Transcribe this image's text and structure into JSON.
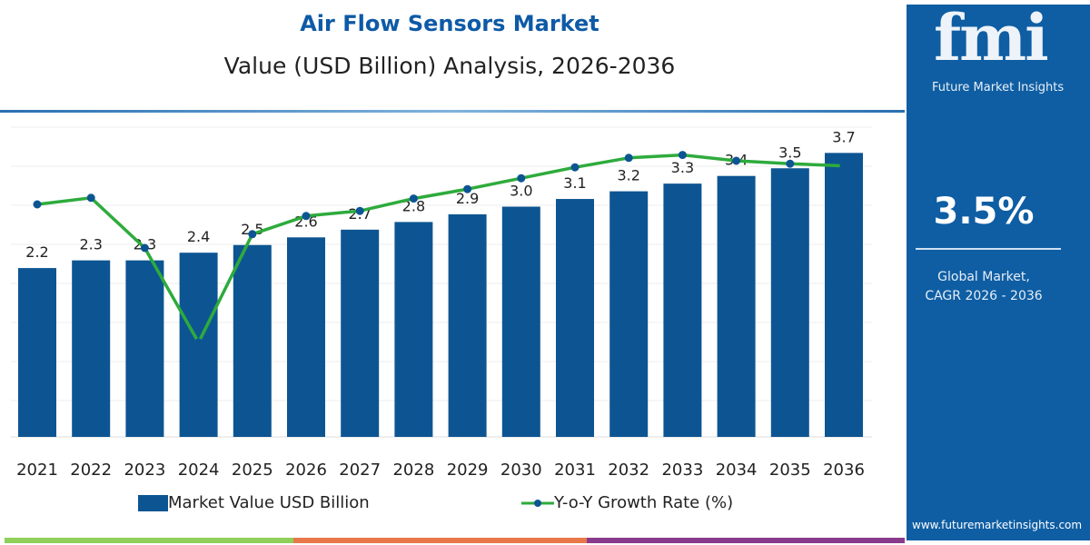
{
  "header": {
    "title": "Air Flow Sensors Market",
    "subtitle": "Value (USD Billion) Analysis, 2026-2036"
  },
  "chart_data": {
    "type": "bar",
    "title": "Air Flow Sensors Market",
    "subtitle": "Value (USD Billion) Analysis, 2026-2036",
    "categories": [
      "2021",
      "2022",
      "2023",
      "2024",
      "2025",
      "2026",
      "2027",
      "2028",
      "2029",
      "2030",
      "2031",
      "2032",
      "2033",
      "2034",
      "2035",
      "2036"
    ],
    "series": [
      {
        "name": "Market Value USD Billion",
        "type": "bar",
        "color": "#0d5592",
        "values": [
          2.2,
          2.3,
          2.3,
          2.4,
          2.5,
          2.6,
          2.7,
          2.8,
          2.9,
          3.0,
          3.1,
          3.2,
          3.3,
          3.4,
          3.5,
          3.7
        ]
      },
      {
        "name": "Y-o-Y Growth Rate (%)",
        "type": "line",
        "color": "#2eab3c",
        "marker_color": "#0d5592",
        "values": [
          3.2,
          3.29,
          2.6,
          1.3,
          2.79,
          3.04,
          3.11,
          3.28,
          3.41,
          3.56,
          3.71,
          3.84,
          3.88,
          3.8,
          3.76,
          3.73
        ]
      }
    ],
    "data_labels": [
      "2.2",
      "2.3",
      "2.3",
      "2.4",
      "2.5",
      "2.6",
      "2.7",
      "2.8",
      "2.9",
      "3.0",
      "3.1",
      "3.2",
      "3.3",
      "3.4",
      "3.5",
      "3.7"
    ],
    "grid": true,
    "legend": "bottom"
  },
  "legend": {
    "bar_label": "Market Value USD Billion",
    "line_label": "Y-o-Y Growth Rate (%)"
  },
  "side_panel": {
    "logo_text": "fmi",
    "logo_subtitle": "Future Market Insights",
    "cagr_value": "3.5%",
    "cagr_label_1": "Global Market,",
    "cagr_label_2": "CAGR 2026 - 2036",
    "website": "www.futuremarketinsights.com"
  },
  "colors": {
    "brand_blue": "#0f5ea3",
    "bar": "#0d5592",
    "line": "#2eab3c",
    "strip": [
      "#8fcf5a",
      "#e8784a",
      "#8a3a8c"
    ]
  }
}
